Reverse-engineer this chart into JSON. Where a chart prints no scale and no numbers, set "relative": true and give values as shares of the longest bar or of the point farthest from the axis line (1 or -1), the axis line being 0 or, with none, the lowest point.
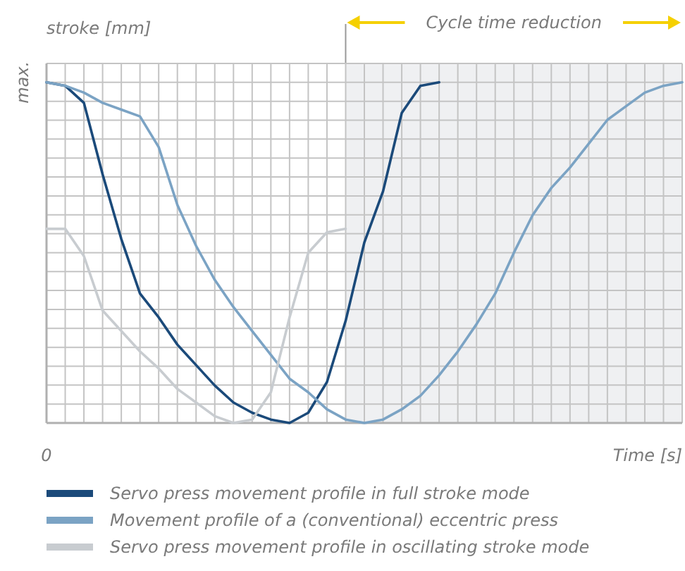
{
  "chart_data": {
    "type": "line",
    "relative": true,
    "ylabel": "stroke [mm]",
    "xlabel": "Time [s]",
    "grid": true,
    "legend": "bottom",
    "line_style": "solid",
    "categories": [
      null,
      null,
      null,
      null,
      null,
      null,
      null,
      null,
      null,
      null,
      null,
      null,
      null,
      null,
      null,
      null,
      null,
      null,
      null,
      null,
      null,
      null,
      null,
      null,
      null,
      null,
      null,
      null,
      null,
      null,
      null,
      null,
      null,
      null,
      null
    ],
    "annotations": [
      "Cycle time reduction",
      "max.",
      "0"
    ],
    "series": [
      {
        "name": "Servo press movement profile in full stroke mode",
        "color": "#1b4a7a",
        "values": [
          1,
          0.99,
          0.94,
          0.73,
          0.54,
          0.38,
          0.31,
          0.23,
          0.17,
          0.11,
          0.06,
          0.03,
          0.01,
          0,
          0.03,
          0.12,
          0.3,
          0.53,
          0.68,
          0.91,
          0.99,
          1,
          null,
          null,
          null,
          null,
          null,
          null,
          null,
          null,
          null,
          null,
          null,
          null,
          null
        ]
      },
      {
        "name": "Movement profile of a (conventional) eccentric press",
        "color": "#7ba3c4",
        "values": [
          1,
          0.99,
          0.97,
          0.94,
          0.92,
          0.9,
          0.81,
          0.64,
          0.52,
          0.42,
          0.34,
          0.27,
          0.2,
          0.13,
          0.09,
          0.04,
          0.01,
          0,
          0.01,
          0.04,
          0.08,
          0.14,
          0.21,
          0.29,
          0.38,
          0.5,
          0.61,
          0.69,
          0.75,
          0.82,
          0.89,
          0.93,
          0.97,
          0.99,
          1
        ]
      },
      {
        "name": "Servo press movement profile in oscillating stroke mode",
        "color": "#c8ccd0",
        "values": [
          0.57,
          0.57,
          0.49,
          0.33,
          0.27,
          0.21,
          0.16,
          0.1,
          0.06,
          0.02,
          0,
          0.01,
          0.09,
          0.31,
          0.5,
          0.56,
          0.57,
          null,
          null,
          null,
          null,
          null,
          null,
          null,
          null,
          null,
          null,
          null,
          null,
          null,
          null,
          null,
          null,
          null,
          null
        ]
      }
    ]
  }
}
